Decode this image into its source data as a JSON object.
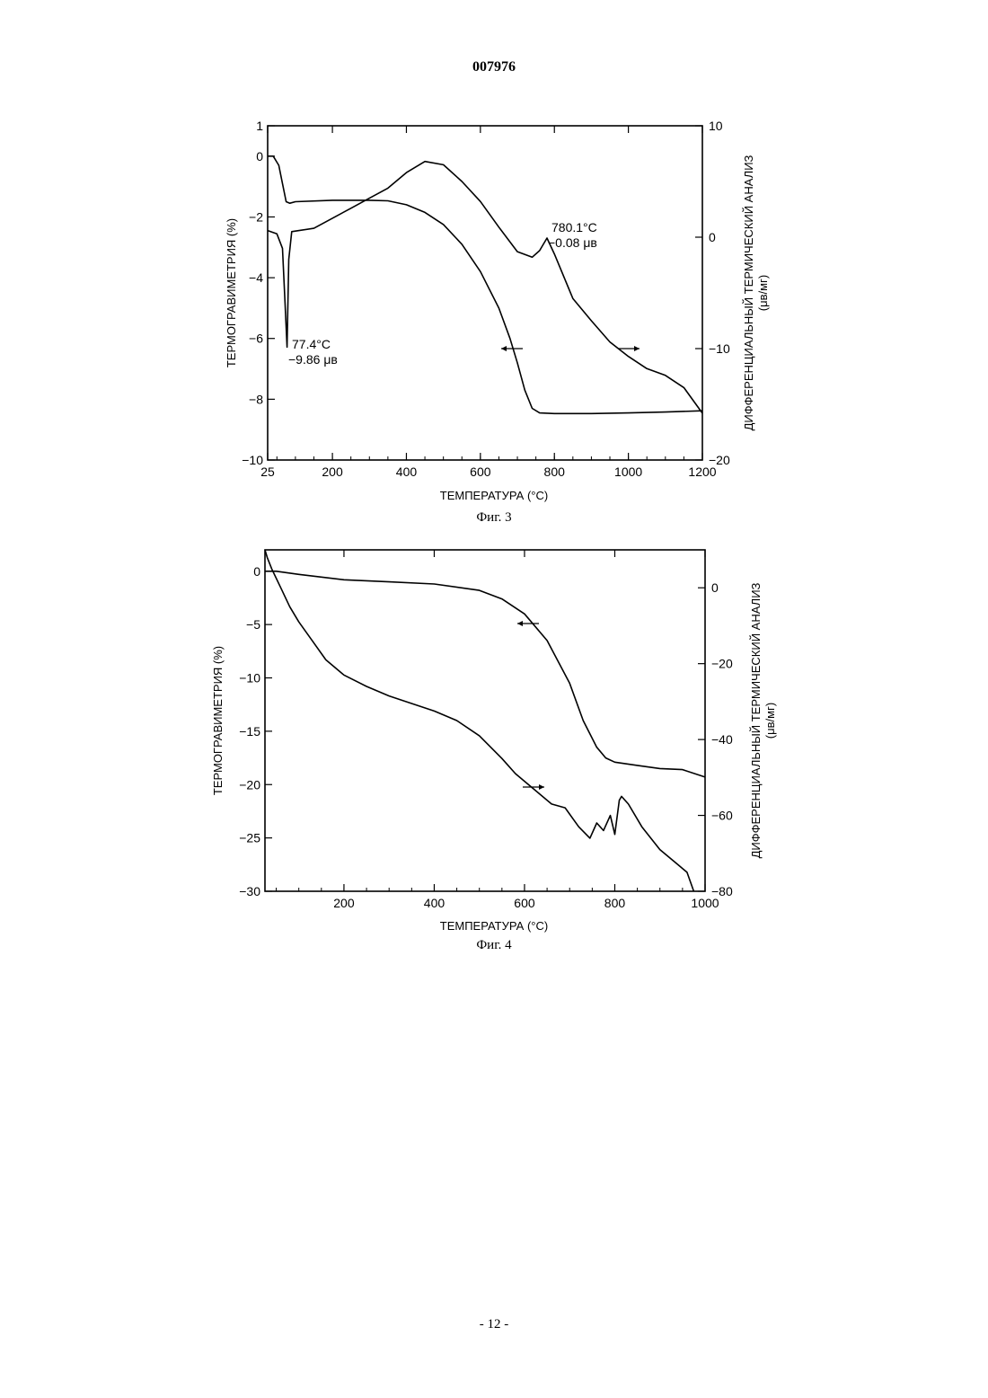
{
  "document": {
    "number": "007976",
    "page": "- 12 -"
  },
  "chart_data": [
    {
      "type": "line",
      "caption": "Фиг. 3",
      "xlabel": "ТЕМПЕРАТУРА (°C)",
      "ylabel_left": "ТЕРМОГРАВИМЕТРИЯ (%)",
      "ylabel_right": [
        "ДИФФЕРЕНЦИАЛЬНЫЙ ТЕРМИЧЕСКИЙ АНАЛИЗ",
        "(μв/мг)"
      ],
      "xlim": [
        25,
        1200
      ],
      "x_ticks": [
        25,
        200,
        400,
        600,
        800,
        1000,
        1200
      ],
      "ylim_left": [
        -10,
        1
      ],
      "y_ticks_left": [
        1,
        0,
        -2,
        -4,
        -6,
        -8,
        -10
      ],
      "ylim_right": [
        -20,
        10
      ],
      "y_ticks_right": [
        10,
        0,
        -10,
        -20
      ],
      "grid": false,
      "annotations": [
        {
          "lines": [
            "77.4°C",
            "−9.86 μв"
          ],
          "x": 77.4,
          "y": -9.86,
          "axis": "right"
        },
        {
          "lines": [
            "780.1°C",
            "−0.08 μв"
          ],
          "x": 780.1,
          "y": -0.08,
          "axis": "right"
        }
      ],
      "series": [
        {
          "axis": "left",
          "arrow": "left",
          "x": [
            25,
            40,
            55,
            65,
            75,
            85,
            100,
            200,
            300,
            350,
            400,
            450,
            500,
            550,
            600,
            650,
            680,
            700,
            720,
            740,
            760,
            800,
            900,
            1000,
            1100,
            1200
          ],
          "y": [
            0,
            0,
            -0.3,
            -0.9,
            -1.5,
            -1.55,
            -1.5,
            -1.45,
            -1.45,
            -1.47,
            -1.6,
            -1.85,
            -2.25,
            -2.9,
            -3.8,
            -5.0,
            -6.0,
            -6.8,
            -7.7,
            -8.3,
            -8.45,
            -8.47,
            -8.47,
            -8.45,
            -8.42,
            -8.38
          ]
        },
        {
          "axis": "right",
          "arrow": "right",
          "x": [
            25,
            50,
            65,
            72,
            77.4,
            82,
            90,
            110,
            150,
            200,
            250,
            300,
            350,
            400,
            450,
            500,
            550,
            600,
            650,
            700,
            740,
            760,
            780.1,
            800,
            850,
            900,
            950,
            1000,
            1050,
            1100,
            1150,
            1200
          ],
          "y": [
            0.6,
            0.3,
            -1,
            -6,
            -9.86,
            -2,
            0.5,
            0.6,
            0.8,
            1.7,
            2.6,
            3.5,
            4.4,
            5.8,
            6.8,
            6.5,
            5.0,
            3.2,
            0.9,
            -1.3,
            -1.8,
            -1.2,
            -0.08,
            -1.5,
            -5.5,
            -7.5,
            -9.4,
            -10.7,
            -11.8,
            -12.4,
            -13.5,
            -15.8
          ]
        }
      ]
    },
    {
      "type": "line",
      "caption": "Фиг. 4",
      "xlabel": "ТЕМПЕРАТУРА (°C)",
      "ylabel_left": "ТЕРМОГРАВИМЕТРИЯ (%)",
      "ylabel_right": [
        "ДИФФЕРЕНЦИАЛЬНЫЙ ТЕРМИЧЕСКИЙ АНАЛИЗ",
        "(μв/мг)"
      ],
      "xlim": [
        25,
        1000
      ],
      "x_ticks": [
        200,
        400,
        600,
        800,
        1000
      ],
      "ylim_left": [
        -30,
        2
      ],
      "y_ticks_left": [
        0,
        -5,
        -10,
        -15,
        -20,
        -25,
        -30
      ],
      "ylim_right": [
        -80,
        10
      ],
      "y_ticks_right": [
        0,
        -20,
        -40,
        -60,
        -80
      ],
      "grid": false,
      "annotations": [],
      "series": [
        {
          "axis": "left",
          "arrow": "left",
          "x": [
            25,
            50,
            100,
            200,
            300,
            400,
            500,
            550,
            600,
            650,
            700,
            730,
            760,
            780,
            800,
            850,
            900,
            950,
            1000
          ],
          "y": [
            0,
            0,
            -0.3,
            -0.8,
            -1.0,
            -1.2,
            -1.8,
            -2.6,
            -4.0,
            -6.5,
            -10.5,
            -14.0,
            -16.5,
            -17.5,
            -17.9,
            -18.2,
            -18.5,
            -18.6,
            -19.3
          ]
        },
        {
          "axis": "right",
          "arrow": "right",
          "x": [
            25,
            30,
            40,
            60,
            80,
            100,
            130,
            160,
            200,
            250,
            300,
            350,
            400,
            450,
            500,
            550,
            580,
            620,
            660,
            690,
            720,
            745,
            760,
            775,
            790,
            800,
            810,
            815,
            830,
            860,
            900,
            940,
            960,
            975
          ],
          "y": [
            10,
            8,
            5,
            0,
            -5,
            -9,
            -14,
            -19,
            -23,
            -26,
            -28.5,
            -30.5,
            -32.5,
            -35,
            -39,
            -45,
            -49,
            -53,
            -57,
            -58,
            -63,
            -66,
            -62,
            -64,
            -60,
            -65,
            -56,
            -55,
            -57,
            -63,
            -69,
            -73,
            -75,
            -80
          ]
        }
      ]
    }
  ]
}
